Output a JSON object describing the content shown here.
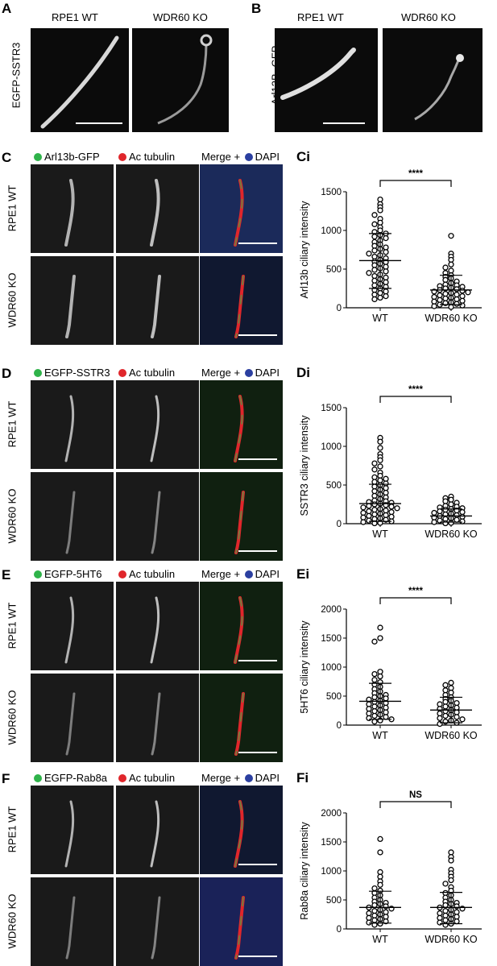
{
  "panels": {
    "A": {
      "letter": "A",
      "row_label": "EGFP-SSTR3",
      "col1": "RPE1 WT",
      "col2": "WDR60 KO"
    },
    "B": {
      "letter": "B",
      "row_label": "Arl13B- GFP",
      "col1": "RPE1 WT",
      "col2": "WDR60 KO"
    },
    "C": {
      "letter": "C",
      "marker": "Arl13b-GFP",
      "tubulin": "Ac tubulin",
      "merge": "Merge + ",
      "dapi": "DAPI",
      "row1": "RPE1 WT",
      "row2": "WDR60 KO"
    },
    "D": {
      "letter": "D",
      "marker": "EGFP-SSTR3",
      "tubulin": "Ac tubulin",
      "merge": "Merge + ",
      "dapi": "DAPI",
      "row1": "RPE1 WT",
      "row2": "WDR60 KO"
    },
    "E": {
      "letter": "E",
      "marker": "EGFP-5HT6",
      "tubulin": "Ac tubulin",
      "merge": "Merge + ",
      "dapi": "DAPI",
      "row1": "RPE1 WT",
      "row2": "WDR60 KO"
    },
    "F": {
      "letter": "F",
      "marker": "EGFP-Rab8a",
      "tubulin": "Ac tubulin",
      "merge": "Merge + ",
      "dapi": "DAPI",
      "row1": "RPE1 WT",
      "row2": "WDR60 KO"
    }
  },
  "colors": {
    "green": "#2fb34a",
    "red": "#e0262b",
    "blue": "#2b3fa0"
  },
  "chart_data": [
    {
      "id": "Ci",
      "type": "scatter",
      "title": "Ci",
      "ylabel": "Arl13b ciliary intensity",
      "ylim": [
        0,
        1500
      ],
      "yticks": [
        0,
        500,
        1000,
        1500
      ],
      "categories": [
        "WT",
        "WDR60 KO"
      ],
      "significance": "****",
      "series": [
        {
          "category": "WT",
          "mean": 610,
          "sd": [
            250,
            960
          ],
          "values": [
            1400,
            1340,
            1300,
            1260,
            1200,
            1150,
            1100,
            1080,
            1040,
            1000,
            980,
            960,
            940,
            920,
            900,
            870,
            850,
            820,
            800,
            780,
            760,
            740,
            720,
            700,
            680,
            660,
            640,
            620,
            600,
            590,
            570,
            550,
            530,
            510,
            490,
            470,
            450,
            430,
            410,
            390,
            370,
            350,
            330,
            310,
            290,
            270,
            250,
            230,
            210,
            190,
            170,
            150,
            130,
            110
          ]
        },
        {
          "category": "WDR60 KO",
          "mean": 230,
          "sd": [
            40,
            420
          ],
          "values": [
            930,
            700,
            660,
            620,
            560,
            520,
            480,
            450,
            420,
            400,
            380,
            360,
            340,
            320,
            300,
            290,
            280,
            270,
            260,
            250,
            240,
            230,
            220,
            210,
            200,
            190,
            180,
            170,
            160,
            150,
            140,
            130,
            120,
            110,
            100,
            90,
            80,
            70,
            60,
            50,
            40,
            30,
            20,
            10
          ]
        }
      ]
    },
    {
      "id": "Di",
      "type": "scatter",
      "title": "Di",
      "ylabel": "SSTR3 ciliary intensity",
      "ylim": [
        0,
        1500
      ],
      "yticks": [
        0,
        500,
        1000,
        1500
      ],
      "categories": [
        "WT",
        "WDR60 KO"
      ],
      "significance": "****",
      "series": [
        {
          "category": "WT",
          "mean": 260,
          "sd": [
            30,
            510
          ],
          "values": [
            1110,
            1060,
            980,
            900,
            860,
            820,
            780,
            740,
            700,
            660,
            620,
            600,
            580,
            560,
            540,
            520,
            500,
            480,
            460,
            440,
            420,
            400,
            380,
            360,
            340,
            320,
            300,
            290,
            280,
            270,
            260,
            250,
            240,
            230,
            220,
            210,
            200,
            190,
            180,
            170,
            160,
            150,
            140,
            130,
            120,
            110,
            100,
            90,
            80,
            70,
            60,
            50,
            40,
            30,
            20,
            10,
            5
          ]
        },
        {
          "category": "WDR60 KO",
          "mean": 100,
          "sd": [
            20,
            190
          ],
          "values": [
            350,
            330,
            310,
            290,
            270,
            250,
            230,
            220,
            210,
            200,
            190,
            180,
            170,
            160,
            150,
            140,
            130,
            120,
            110,
            100,
            90,
            80,
            70,
            60,
            50,
            40,
            30,
            20,
            10,
            5
          ]
        }
      ]
    },
    {
      "id": "Ei",
      "type": "scatter",
      "title": "Ei",
      "ylabel": "5HT6 ciliary intensity",
      "ylim": [
        0,
        2000
      ],
      "yticks": [
        0,
        500,
        1000,
        1500,
        2000
      ],
      "categories": [
        "WT",
        "WDR60 KO"
      ],
      "significance": "****",
      "series": [
        {
          "category": "WT",
          "mean": 410,
          "sd": [
            100,
            720
          ],
          "values": [
            1680,
            1500,
            1440,
            920,
            880,
            840,
            780,
            740,
            700,
            660,
            620,
            580,
            550,
            520,
            500,
            480,
            460,
            440,
            420,
            400,
            380,
            360,
            340,
            320,
            300,
            280,
            260,
            240,
            220,
            200,
            180,
            160,
            140,
            120,
            100,
            80,
            60
          ]
        },
        {
          "category": "WDR60 KO",
          "mean": 260,
          "sd": [
            40,
            480
          ],
          "values": [
            730,
            690,
            640,
            600,
            560,
            520,
            480,
            450,
            420,
            400,
            380,
            360,
            340,
            320,
            300,
            280,
            260,
            240,
            220,
            200,
            180,
            160,
            140,
            120,
            100,
            80,
            60,
            40,
            20
          ]
        }
      ]
    },
    {
      "id": "Fi",
      "type": "scatter",
      "title": "Fi",
      "ylabel": "Rab8a ciliary intensity",
      "ylim": [
        0,
        2000
      ],
      "yticks": [
        0,
        500,
        1000,
        1500,
        2000
      ],
      "categories": [
        "WT",
        "WDR60 KO"
      ],
      "significance": "NS",
      "series": [
        {
          "category": "WT",
          "mean": 370,
          "sd": [
            100,
            650
          ],
          "values": [
            1550,
            1320,
            980,
            900,
            820,
            760,
            700,
            660,
            620,
            580,
            540,
            500,
            470,
            450,
            430,
            410,
            390,
            370,
            350,
            330,
            310,
            290,
            270,
            250,
            230,
            210,
            190,
            170,
            150,
            130,
            110,
            90,
            70
          ]
        },
        {
          "category": "WDR60 KO",
          "mean": 370,
          "sd": [
            90,
            630
          ],
          "values": [
            1320,
            1240,
            1180,
            1020,
            960,
            900,
            840,
            780,
            720,
            660,
            620,
            580,
            540,
            500,
            470,
            450,
            430,
            410,
            390,
            370,
            350,
            330,
            310,
            290,
            270,
            250,
            230,
            210,
            190,
            170,
            150,
            130,
            110,
            90,
            70
          ]
        }
      ]
    }
  ]
}
